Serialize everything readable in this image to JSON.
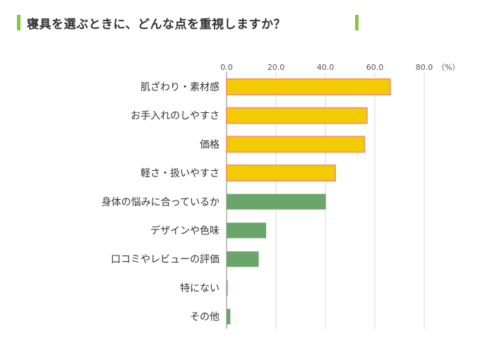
{
  "chart_data": {
    "type": "bar",
    "orientation": "horizontal",
    "title": "寝具を選ぶときに、どんな点を重視しますか？",
    "unit": "（%）",
    "categories": [
      "肌ざわり・素材感",
      "お手入れのしやすさ",
      "価格",
      "軽さ・扱いやすさ",
      "身体の悩みに合っているか",
      "デザインや色味",
      "口コミやレビューの評価",
      "特にない",
      "その他"
    ],
    "values": [
      66.2,
      56.8,
      55.8,
      44.0,
      40.2,
      16.0,
      13.0,
      0.3,
      1.5
    ],
    "xlim": [
      0,
      80
    ],
    "xticks": [
      "0.0",
      "20.0",
      "40.0",
      "60.0",
      "80.0"
    ],
    "grid": true,
    "axis_position": "top",
    "highlight_count": 4
  },
  "colors": {
    "accent": "#8cc63f",
    "highlight_fill": "#f2cc00",
    "highlight_stroke": "#f39a6b",
    "normal_fill": "#6aa56a",
    "grid": "#d9d9d9",
    "axis": "#808080"
  }
}
